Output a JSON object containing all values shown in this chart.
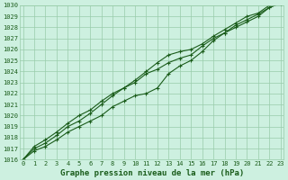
{
  "title": "Graphe pression niveau de la mer (hPa)",
  "background_color": "#cdf0e0",
  "grid_color": "#99ccaa",
  "line_color": "#1a5c1a",
  "x_values": [
    0,
    1,
    2,
    3,
    4,
    5,
    6,
    7,
    8,
    9,
    10,
    11,
    12,
    13,
    14,
    15,
    16,
    17,
    18,
    19,
    20,
    21,
    22,
    23
  ],
  "line1": [
    1016.0,
    1016.8,
    1017.2,
    1017.8,
    1018.5,
    1019.0,
    1019.5,
    1020.0,
    1020.8,
    1021.3,
    1021.8,
    1022.0,
    1022.5,
    1023.8,
    1024.5,
    1025.0,
    1025.8,
    1026.8,
    1027.5,
    1028.0,
    1028.5,
    1029.0,
    1029.8,
    1030.2
  ],
  "line2": [
    1016.0,
    1017.0,
    1017.5,
    1018.2,
    1019.0,
    1019.5,
    1020.2,
    1021.0,
    1021.8,
    1022.5,
    1023.0,
    1023.8,
    1024.2,
    1024.8,
    1025.2,
    1025.5,
    1026.3,
    1027.0,
    1027.5,
    1028.2,
    1028.7,
    1029.2,
    1029.8,
    1030.2
  ],
  "line3": [
    1016.0,
    1017.2,
    1017.8,
    1018.5,
    1019.3,
    1020.0,
    1020.5,
    1021.3,
    1022.0,
    1022.5,
    1023.2,
    1024.0,
    1024.8,
    1025.5,
    1025.8,
    1026.0,
    1026.5,
    1027.2,
    1027.8,
    1028.4,
    1029.0,
    1029.3,
    1030.0,
    1030.2
  ],
  "ylim": [
    1016,
    1030
  ],
  "xlim": [
    0,
    23
  ],
  "yticks": [
    1016,
    1017,
    1018,
    1019,
    1020,
    1021,
    1022,
    1023,
    1024,
    1025,
    1026,
    1027,
    1028,
    1029,
    1030
  ],
  "xticks": [
    0,
    1,
    2,
    3,
    4,
    5,
    6,
    7,
    8,
    9,
    10,
    11,
    12,
    13,
    14,
    15,
    16,
    17,
    18,
    19,
    20,
    21,
    22,
    23
  ],
  "title_fontsize": 6.5,
  "tick_fontsize": 5.0,
  "marker": "+",
  "marker_size": 3.5,
  "line_width": 0.8
}
